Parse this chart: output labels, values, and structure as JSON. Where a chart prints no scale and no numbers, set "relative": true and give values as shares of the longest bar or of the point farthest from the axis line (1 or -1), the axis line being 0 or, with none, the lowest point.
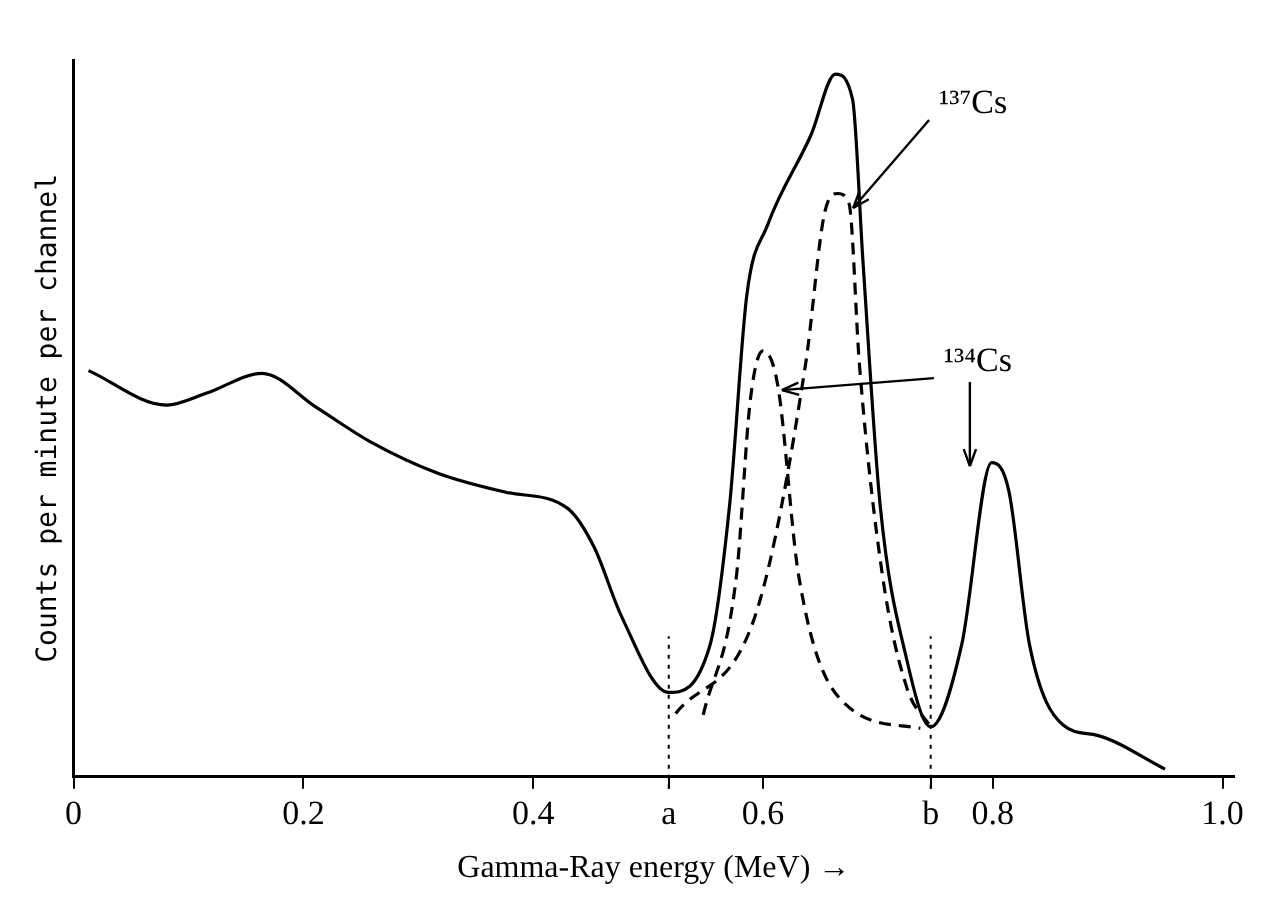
{
  "chart_data": {
    "type": "line",
    "relative": true,
    "xlabel": "Gamma-Ray energy (MeV) →",
    "ylabel": "Counts per minute per channel",
    "xlim": [
      0,
      1.01
    ],
    "xticks": [
      0,
      0.2,
      0.4,
      {
        "value": 0.518,
        "label": "a"
      },
      0.6,
      {
        "value": 0.746,
        "label": "b"
      },
      0.8,
      {
        "value": 1,
        "label": "1.0"
      }
    ],
    "tick_labels": "x",
    "grid": false,
    "legend": false,
    "marker": "none",
    "series": [
      {
        "color": "#000000",
        "line_style": "solid",
        "x": [
          0.013,
          0.081,
          0.116,
          0.164,
          0.211,
          0.258,
          0.317,
          0.376,
          0.43,
          0.453,
          0.477,
          0.518,
          0.554,
          0.571,
          0.586,
          0.604,
          0.642,
          0.663,
          0.678,
          0.687,
          0.702,
          0.725,
          0.746,
          0.773,
          0.799,
          0.814,
          0.832,
          0.861,
          0.891,
          0.95
        ],
        "values": [
          0.578,
          0.529,
          0.546,
          0.574,
          0.526,
          0.477,
          0.432,
          0.405,
          0.382,
          0.327,
          0.228,
          0.12,
          0.188,
          0.387,
          0.686,
          0.785,
          0.914,
          1,
          0.964,
          0.735,
          0.387,
          0.168,
          0.071,
          0.188,
          0.447,
          0.407,
          0.188,
          0.074,
          0.059,
          0.011
        ]
      },
      {
        "color": "#000000",
        "line_style": "dashed",
        "x": [
          0.524,
          0.595,
          0.637,
          0.654,
          0.665,
          0.675,
          0.684,
          0.704,
          0.725,
          0.746
        ],
        "values": [
          0.09,
          0.238,
          0.586,
          0.805,
          0.83,
          0.815,
          0.586,
          0.287,
          0.128,
          0.071
        ]
      },
      {
        "color": "#000000",
        "line_style": "dashed",
        "x": [
          0.548,
          0.577,
          0.589,
          0.6,
          0.613,
          0.631,
          0.672,
          0.737
        ],
        "values": [
          0.088,
          0.287,
          0.536,
          0.606,
          0.556,
          0.287,
          0.103,
          0.069
        ]
      }
    ],
    "ref_lines": [
      {
        "axis": "x",
        "value": 0.518,
        "line_style": "dotted"
      },
      {
        "axis": "x",
        "value": 0.746,
        "line_style": "dotted"
      }
    ],
    "annotations": [
      {
        "text": "¹³⁷Cs",
        "x": 0.675,
        "y": 0.815
      },
      {
        "text": "¹³⁴Cs",
        "x": 0.613,
        "y": 0.556
      }
    ]
  }
}
